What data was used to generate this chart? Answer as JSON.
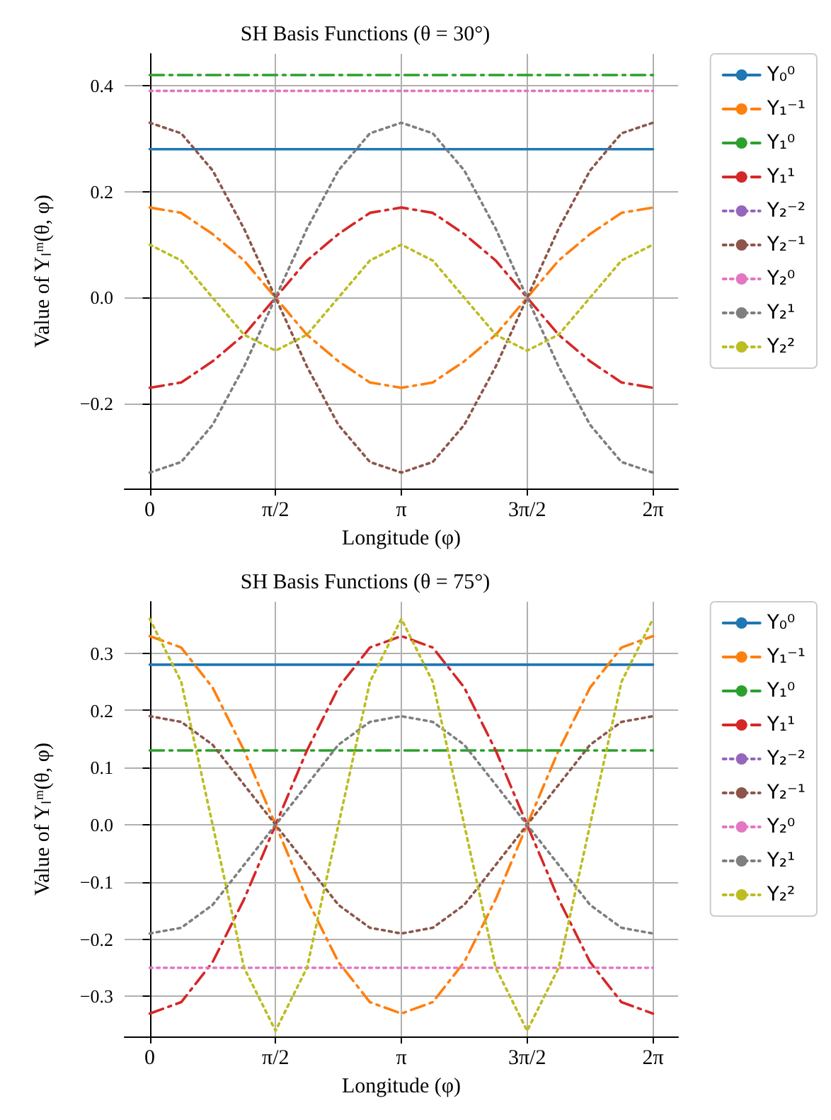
{
  "chart_data": [
    {
      "type": "line",
      "title": "SH Basis Functions (θ = 30°)",
      "xlabel": "Longitude (φ)",
      "ylabel": "Value of Yₗᵐ(θ, φ)",
      "legend": "right",
      "grid": true,
      "marker": "none",
      "x": [
        0,
        0.393,
        0.785,
        1.178,
        1.571,
        1.963,
        2.356,
        2.749,
        3.142,
        3.534,
        3.927,
        4.32,
        4.712,
        5.105,
        5.498,
        5.89,
        6.283
      ],
      "xlim": [
        -0.314,
        6.597
      ],
      "xticks": [
        {
          "value": 0,
          "label": "0"
        },
        {
          "value": 1.571,
          "label": "π/2"
        },
        {
          "value": 3.142,
          "label": "π"
        },
        {
          "value": 4.712,
          "label": "3π/2"
        },
        {
          "value": 6.283,
          "label": "2π"
        }
      ],
      "ylim": [
        -0.36,
        0.46
      ],
      "yticks": [
        {
          "value": -0.2,
          "label": "−0.2"
        },
        {
          "value": 0,
          "label": "0.0"
        },
        {
          "value": 0.2,
          "label": "0.2"
        },
        {
          "value": 0.4,
          "label": "0.4"
        }
      ],
      "series": [
        {
          "name": "Y₀⁰",
          "color": "#1f77b4",
          "line_style": "solid",
          "values": [
            0.28,
            0.28,
            0.28,
            0.28,
            0.28,
            0.28,
            0.28,
            0.28,
            0.28,
            0.28,
            0.28,
            0.28,
            0.28,
            0.28,
            0.28,
            0.28,
            0.28
          ]
        },
        {
          "name": "Y₁⁻¹",
          "color": "#ff7f0e",
          "line_style": "dashed",
          "values": [
            0.17,
            0.16,
            0.12,
            0.07,
            0,
            -0.07,
            -0.12,
            -0.16,
            -0.17,
            -0.16,
            -0.12,
            -0.07,
            0,
            0.07,
            0.12,
            0.16,
            0.17
          ]
        },
        {
          "name": "Y₁⁰",
          "color": "#2ca02c",
          "line_style": "dashed",
          "values": [
            0.42,
            0.42,
            0.42,
            0.42,
            0.42,
            0.42,
            0.42,
            0.42,
            0.42,
            0.42,
            0.42,
            0.42,
            0.42,
            0.42,
            0.42,
            0.42,
            0.42
          ]
        },
        {
          "name": "Y₁¹",
          "color": "#d62728",
          "line_style": "dashed",
          "values": [
            -0.17,
            -0.16,
            -0.12,
            -0.07,
            0,
            0.07,
            0.12,
            0.16,
            0.17,
            0.16,
            0.12,
            0.07,
            0,
            -0.07,
            -0.12,
            -0.16,
            -0.17
          ]
        },
        {
          "name": "Y₂⁻²",
          "color": "#9467bd",
          "line_style": "dotted",
          "values": [
            null,
            null,
            null,
            null,
            null,
            null,
            null,
            null,
            null,
            null,
            null,
            null,
            null,
            null,
            null,
            null,
            null
          ]
        },
        {
          "name": "Y₂⁻¹",
          "color": "#8c564b",
          "line_style": "dotted",
          "values": [
            0.33,
            0.31,
            0.24,
            0.13,
            0,
            -0.13,
            -0.24,
            -0.31,
            -0.33,
            -0.31,
            -0.24,
            -0.13,
            0,
            0.13,
            0.24,
            0.31,
            0.33
          ]
        },
        {
          "name": "Y₂⁰",
          "color": "#e377c2",
          "line_style": "dotted",
          "values": [
            0.39,
            0.39,
            0.39,
            0.39,
            0.39,
            0.39,
            0.39,
            0.39,
            0.39,
            0.39,
            0.39,
            0.39,
            0.39,
            0.39,
            0.39,
            0.39,
            0.39
          ]
        },
        {
          "name": "Y₂¹",
          "color": "#7f7f7f",
          "line_style": "dotted",
          "values": [
            -0.33,
            -0.31,
            -0.24,
            -0.13,
            0,
            0.13,
            0.24,
            0.31,
            0.33,
            0.31,
            0.24,
            0.13,
            0,
            -0.13,
            -0.24,
            -0.31,
            -0.33
          ]
        },
        {
          "name": "Y₂²",
          "color": "#bcbd22",
          "line_style": "dotted",
          "values": [
            0.1,
            0.07,
            0,
            -0.07,
            -0.1,
            -0.07,
            0,
            0.07,
            0.1,
            0.07,
            0,
            -0.07,
            -0.1,
            -0.07,
            0,
            0.07,
            0.1
          ]
        }
      ]
    },
    {
      "type": "line",
      "title": "SH Basis Functions (θ = 75°)",
      "xlabel": "Longitude (φ)",
      "ylabel": "Value of Yₗᵐ(θ, φ)",
      "legend": "right",
      "grid": true,
      "marker": "none",
      "x": [
        0,
        0.393,
        0.785,
        1.178,
        1.571,
        1.963,
        2.356,
        2.749,
        3.142,
        3.534,
        3.927,
        4.32,
        4.712,
        5.105,
        5.498,
        5.89,
        6.283
      ],
      "xlim": [
        -0.314,
        6.597
      ],
      "xticks": [
        {
          "value": 0,
          "label": "0"
        },
        {
          "value": 1.571,
          "label": "π/2"
        },
        {
          "value": 3.142,
          "label": "π"
        },
        {
          "value": 4.712,
          "label": "3π/2"
        },
        {
          "value": 6.283,
          "label": "2π"
        }
      ],
      "ylim": [
        -0.37,
        0.39
      ],
      "yticks": [
        {
          "value": -0.3,
          "label": "−0.3"
        },
        {
          "value": -0.2,
          "label": "−0.2"
        },
        {
          "value": -0.1,
          "label": "−0.1"
        },
        {
          "value": 0,
          "label": "0.0"
        },
        {
          "value": 0.1,
          "label": "0.1"
        },
        {
          "value": 0.2,
          "label": "0.2"
        },
        {
          "value": 0.3,
          "label": "0.3"
        }
      ],
      "series": [
        {
          "name": "Y₀⁰",
          "color": "#1f77b4",
          "line_style": "solid",
          "values": [
            0.28,
            0.28,
            0.28,
            0.28,
            0.28,
            0.28,
            0.28,
            0.28,
            0.28,
            0.28,
            0.28,
            0.28,
            0.28,
            0.28,
            0.28,
            0.28,
            0.28
          ]
        },
        {
          "name": "Y₁⁻¹",
          "color": "#ff7f0e",
          "line_style": "dashed",
          "values": [
            0.33,
            0.31,
            0.24,
            0.13,
            0,
            -0.13,
            -0.24,
            -0.31,
            -0.33,
            -0.31,
            -0.24,
            -0.13,
            0,
            0.13,
            0.24,
            0.31,
            0.33
          ]
        },
        {
          "name": "Y₁⁰",
          "color": "#2ca02c",
          "line_style": "dashed",
          "values": [
            0.13,
            0.13,
            0.13,
            0.13,
            0.13,
            0.13,
            0.13,
            0.13,
            0.13,
            0.13,
            0.13,
            0.13,
            0.13,
            0.13,
            0.13,
            0.13,
            0.13
          ]
        },
        {
          "name": "Y₁¹",
          "color": "#d62728",
          "line_style": "dashed",
          "values": [
            -0.33,
            -0.31,
            -0.24,
            -0.13,
            0,
            0.13,
            0.24,
            0.31,
            0.33,
            0.31,
            0.24,
            0.13,
            0,
            -0.13,
            -0.24,
            -0.31,
            -0.33
          ]
        },
        {
          "name": "Y₂⁻²",
          "color": "#9467bd",
          "line_style": "dotted",
          "values": [
            null,
            null,
            null,
            null,
            null,
            null,
            null,
            null,
            null,
            null,
            null,
            null,
            null,
            null,
            null,
            null,
            null
          ]
        },
        {
          "name": "Y₂⁻¹",
          "color": "#8c564b",
          "line_style": "dotted",
          "values": [
            0.19,
            0.18,
            0.14,
            0.07,
            0,
            -0.07,
            -0.14,
            -0.18,
            -0.19,
            -0.18,
            -0.14,
            -0.07,
            0,
            0.07,
            0.14,
            0.18,
            0.19
          ]
        },
        {
          "name": "Y₂⁰",
          "color": "#e377c2",
          "line_style": "dotted",
          "values": [
            -0.25,
            -0.25,
            -0.25,
            -0.25,
            -0.25,
            -0.25,
            -0.25,
            -0.25,
            -0.25,
            -0.25,
            -0.25,
            -0.25,
            -0.25,
            -0.25,
            -0.25,
            -0.25,
            -0.25
          ]
        },
        {
          "name": "Y₂¹",
          "color": "#7f7f7f",
          "line_style": "dotted",
          "values": [
            -0.19,
            -0.18,
            -0.14,
            -0.07,
            0,
            0.07,
            0.14,
            0.18,
            0.19,
            0.18,
            0.14,
            0.07,
            0,
            -0.07,
            -0.14,
            -0.18,
            -0.19
          ]
        },
        {
          "name": "Y₂²",
          "color": "#bcbd22",
          "line_style": "dotted",
          "values": [
            0.36,
            0.25,
            0,
            -0.25,
            -0.36,
            -0.25,
            0,
            0.25,
            0.36,
            0.25,
            0,
            -0.25,
            -0.36,
            -0.25,
            0,
            0.25,
            0.36
          ]
        }
      ]
    }
  ]
}
